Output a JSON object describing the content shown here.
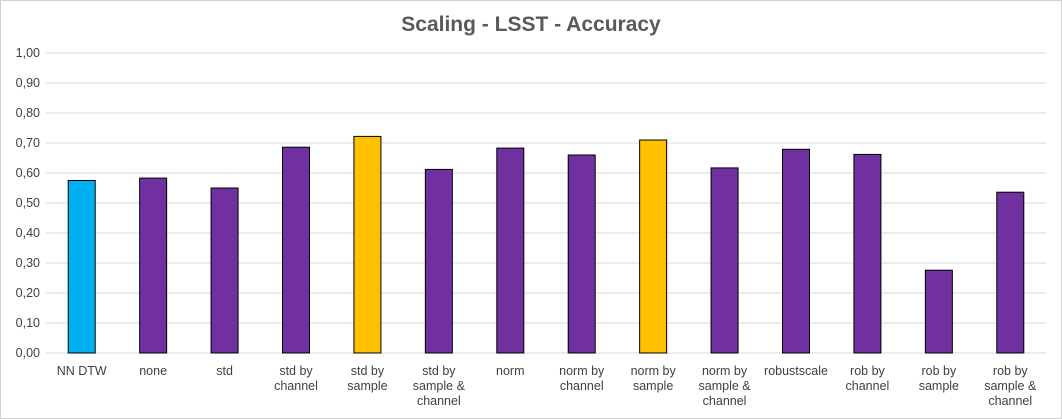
{
  "chart_data": {
    "type": "bar",
    "title": "Scaling - LSST - Accuracy",
    "xlabel": "",
    "ylabel": "",
    "ylim": [
      0,
      1
    ],
    "y_ticks": [
      "0,00",
      "0,10",
      "0,20",
      "0,30",
      "0,40",
      "0,50",
      "0,60",
      "0,70",
      "0,80",
      "0,90",
      "1,00"
    ],
    "grid": true,
    "legend": "none",
    "categories": [
      [
        "NN DTW"
      ],
      [
        "none"
      ],
      [
        "std"
      ],
      [
        "std by",
        "channel"
      ],
      [
        "std by",
        "sample"
      ],
      [
        "std by",
        "sample &",
        "channel"
      ],
      [
        "norm"
      ],
      [
        "norm by",
        "channel"
      ],
      [
        "norm by",
        "sample"
      ],
      [
        "norm by",
        "sample &",
        "channel"
      ],
      [
        "robustscale"
      ],
      [
        "rob by",
        "channel"
      ],
      [
        "rob by",
        "sample"
      ],
      [
        "rob by",
        "sample &",
        "channel"
      ]
    ],
    "values": [
      0.575,
      0.583,
      0.55,
      0.686,
      0.722,
      0.612,
      0.683,
      0.66,
      0.71,
      0.617,
      0.679,
      0.662,
      0.276,
      0.536
    ],
    "colors": [
      "#00b0f0",
      "#7030a0",
      "#7030a0",
      "#7030a0",
      "#ffc000",
      "#7030a0",
      "#7030a0",
      "#7030a0",
      "#ffc000",
      "#7030a0",
      "#7030a0",
      "#7030a0",
      "#7030a0",
      "#7030a0"
    ],
    "gridline_color": "#d9d9d9",
    "bar_outline_color": "#000000"
  }
}
